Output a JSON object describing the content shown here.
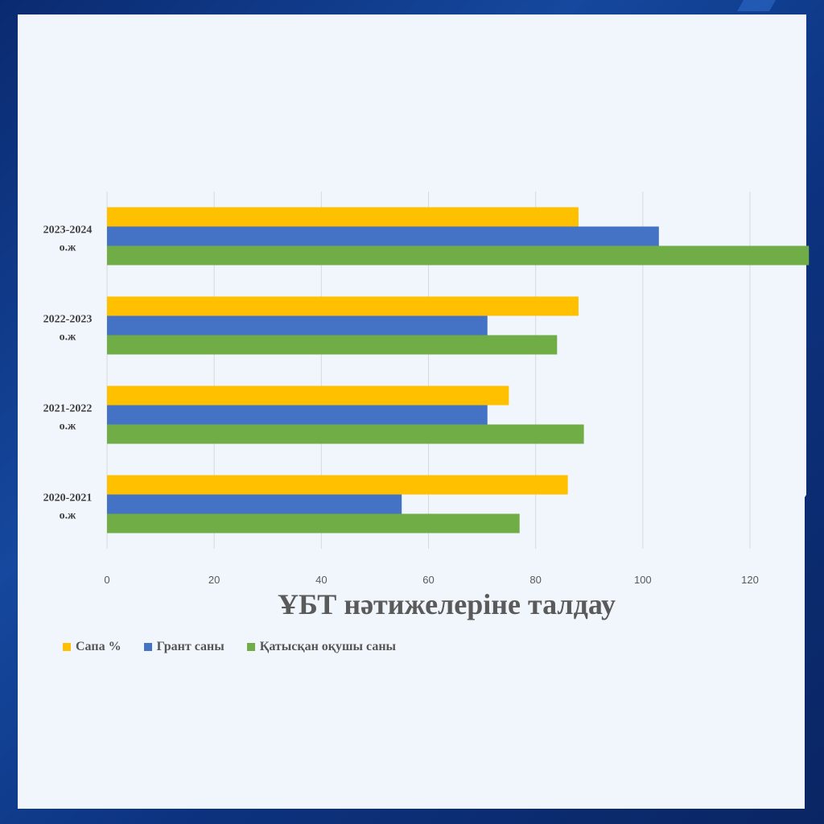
{
  "chart_data": {
    "type": "bar",
    "orientation": "horizontal",
    "title": "ҰБТ нәтижелеріне талдау",
    "categories": [
      "2020-2021 о.ж",
      "2021-2022 о.ж",
      "2022-2023 о.ж",
      "2023-2024 о.ж"
    ],
    "category_lines": [
      [
        "2020-2021",
        "о.ж"
      ],
      [
        "2021-2022",
        "о.ж"
      ],
      [
        "2022-2023",
        "о.ж"
      ],
      [
        "2023-2024",
        "о.ж"
      ]
    ],
    "series": [
      {
        "name": "Сапа %",
        "color": "#ffc000",
        "values": [
          86,
          75,
          88,
          88
        ]
      },
      {
        "name": "Грант саны",
        "color": "#4472c4",
        "values": [
          55,
          71,
          71,
          103
        ]
      },
      {
        "name": "Қатысқан оқушы саны",
        "color": "#70ad47",
        "values": [
          77,
          89,
          84,
          131
        ]
      }
    ],
    "xlim": [
      0,
      130
    ],
    "xticks": [
      0,
      20,
      40,
      60,
      80,
      100,
      120
    ],
    "grid": true,
    "legend": "bottom-left"
  }
}
